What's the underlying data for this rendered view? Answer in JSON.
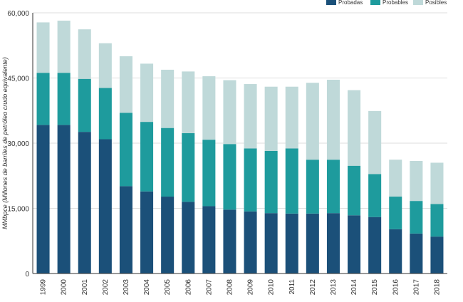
{
  "chart_data": {
    "type": "bar",
    "stacked": true,
    "title": "",
    "xlabel": "",
    "ylabel": "MMbpce (Millones de barriles de petróleo crudo equivalente)",
    "ylim": [
      0,
      60000
    ],
    "yticks": [
      0,
      15000,
      30000,
      45000,
      60000
    ],
    "ytick_labels": [
      "0",
      "15,000",
      "30,000",
      "45,000",
      "60,000"
    ],
    "grid": true,
    "legend_position": "top-right",
    "categories": [
      "1999",
      "2000",
      "2001",
      "2002",
      "2003",
      "2004",
      "2005",
      "2006",
      "2007",
      "2008",
      "2009",
      "2010",
      "2011",
      "2012",
      "2013",
      "2014",
      "2015",
      "2016",
      "2017",
      "2018"
    ],
    "series": [
      {
        "name": "Probadas",
        "color": "#1b5079",
        "values": [
          34200,
          34200,
          32600,
          30900,
          20100,
          18900,
          17700,
          16500,
          15500,
          14700,
          14300,
          13900,
          13800,
          13800,
          13900,
          13400,
          13000,
          10200,
          9200,
          8500
        ]
      },
      {
        "name": "Probables",
        "color": "#1e9b9d",
        "values": [
          12000,
          12000,
          12200,
          11800,
          16900,
          16000,
          15800,
          15800,
          15300,
          15100,
          14500,
          14300,
          15000,
          12400,
          12300,
          11400,
          9900,
          7500,
          7500,
          7500
        ]
      },
      {
        "name": "Posibles",
        "color": "#bfd9d9",
        "values": [
          11600,
          12000,
          11400,
          10300,
          13000,
          13400,
          13400,
          14200,
          14600,
          14700,
          14800,
          14800,
          14200,
          17700,
          18400,
          17400,
          14500,
          8500,
          9200,
          9500
        ]
      }
    ]
  }
}
